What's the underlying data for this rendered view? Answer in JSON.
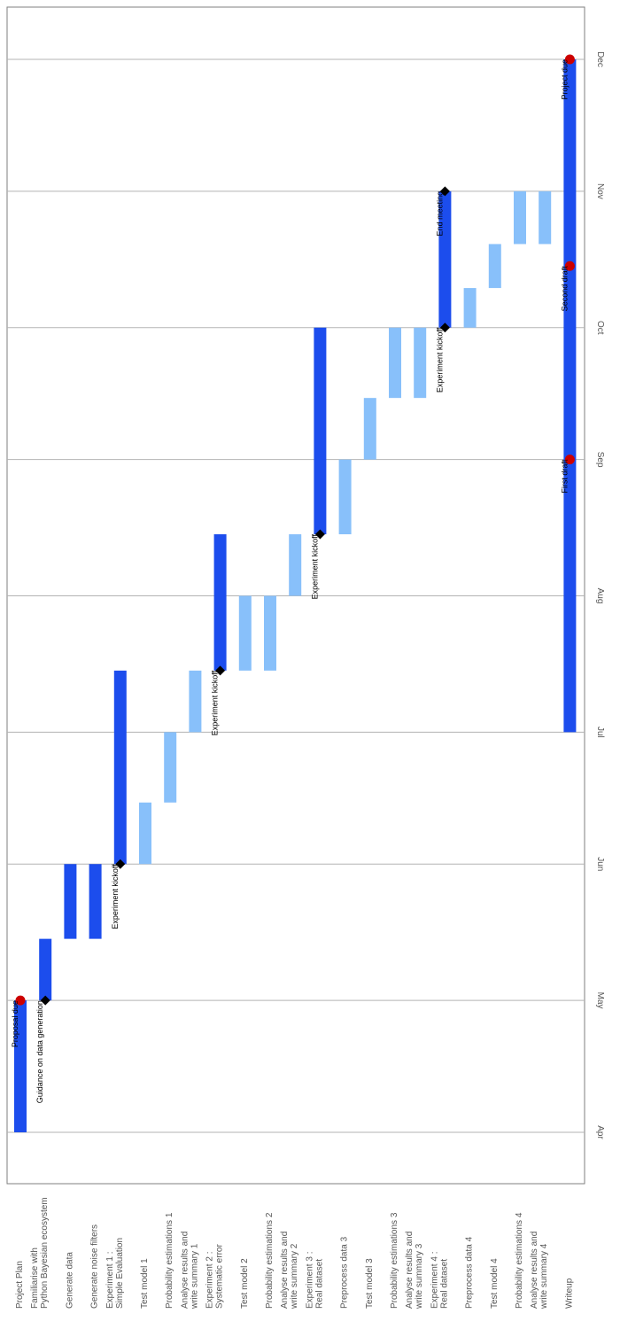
{
  "chart_data": {
    "type": "gantt",
    "orientation": "rotated-90",
    "time_axis": {
      "ticks": [
        "Apr",
        "May",
        "Jun",
        "Jul",
        "Aug",
        "Sep",
        "Oct",
        "Nov",
        "Dec"
      ],
      "range": [
        "2023-03-24",
        "2023-12-12"
      ],
      "grid": true
    },
    "colors": {
      "phase": "#1c4ded",
      "subtask": "#88c0fa",
      "milestone": "#000000",
      "deadline": "#cc0000",
      "grid": "#b3b3b3"
    },
    "tasks": [
      {
        "label": [
          "Project Plan"
        ],
        "start": "2023-04-01",
        "end": "2023-05-01",
        "kind": "phase"
      },
      {
        "label": [
          "Familiarise with",
          "Python Bayesian ecosystem"
        ],
        "start": "2023-05-01",
        "end": "2023-05-15",
        "kind": "phase"
      },
      {
        "label": [
          "Generate data"
        ],
        "start": "2023-05-15",
        "end": "2023-06-01",
        "kind": "phase"
      },
      {
        "label": [
          "Generate noise filters"
        ],
        "start": "2023-05-15",
        "end": "2023-06-01",
        "kind": "phase"
      },
      {
        "label": [
          "Experiment 1 :",
          "Simple Evaluation"
        ],
        "start": "2023-06-01",
        "end": "2023-07-15",
        "kind": "phase"
      },
      {
        "label": [
          "Test model 1"
        ],
        "start": "2023-06-01",
        "end": "2023-06-15",
        "kind": "subtask"
      },
      {
        "label": [
          "Probability estimations 1"
        ],
        "start": "2023-06-15",
        "end": "2023-07-01",
        "kind": "subtask"
      },
      {
        "label": [
          "Analyse results and",
          "write summary 1"
        ],
        "start": "2023-07-01",
        "end": "2023-07-15",
        "kind": "subtask"
      },
      {
        "label": [
          "Experiment 2 :",
          "Systematic error"
        ],
        "start": "2023-07-15",
        "end": "2023-08-15",
        "kind": "phase"
      },
      {
        "label": [
          "Test model 2"
        ],
        "start": "2023-07-15",
        "end": "2023-08-01",
        "kind": "subtask"
      },
      {
        "label": [
          "Probability estimations 2"
        ],
        "start": "2023-07-15",
        "end": "2023-08-01",
        "kind": "subtask"
      },
      {
        "label": [
          "Analyse results and",
          "write summary 2"
        ],
        "start": "2023-08-01",
        "end": "2023-08-15",
        "kind": "subtask"
      },
      {
        "label": [
          "Experiment 3 :",
          "Real dataset"
        ],
        "start": "2023-08-15",
        "end": "2023-10-01",
        "kind": "phase"
      },
      {
        "label": [
          "Preprocess data 3"
        ],
        "start": "2023-08-15",
        "end": "2023-09-01",
        "kind": "subtask"
      },
      {
        "label": [
          "Test model 3"
        ],
        "start": "2023-09-01",
        "end": "2023-09-15",
        "kind": "subtask"
      },
      {
        "label": [
          "Probability estimations 3"
        ],
        "start": "2023-09-15",
        "end": "2023-10-01",
        "kind": "subtask"
      },
      {
        "label": [
          "Analyse results and",
          "write summary 3"
        ],
        "start": "2023-09-15",
        "end": "2023-10-01",
        "kind": "subtask"
      },
      {
        "label": [
          "Experiment 4 :",
          "Real dataset"
        ],
        "start": "2023-10-01",
        "end": "2023-11-01",
        "kind": "phase"
      },
      {
        "label": [
          "Preprocess data 4"
        ],
        "start": "2023-10-01",
        "end": "2023-10-10",
        "kind": "subtask"
      },
      {
        "label": [
          "Test model 4"
        ],
        "start": "2023-10-10",
        "end": "2023-10-20",
        "kind": "subtask"
      },
      {
        "label": [
          "Probability estimations 4"
        ],
        "start": "2023-10-20",
        "end": "2023-11-01",
        "kind": "subtask"
      },
      {
        "label": [
          "Analyse results and",
          "write summary 4"
        ],
        "start": "2023-10-20",
        "end": "2023-11-01",
        "kind": "subtask"
      },
      {
        "label": [
          "Writeup"
        ],
        "start": "2023-07-01",
        "end": "2023-12-01",
        "kind": "phase"
      }
    ],
    "markers": [
      {
        "task": 0,
        "date": "2023-05-01",
        "shape": "circle",
        "text": "Proposal due"
      },
      {
        "task": 1,
        "date": "2023-05-01",
        "shape": "diamond",
        "text": "Guidance on data generation"
      },
      {
        "task": 4,
        "date": "2023-06-01",
        "shape": "diamond",
        "text": "Experiment kickoff"
      },
      {
        "task": 8,
        "date": "2023-07-15",
        "shape": "diamond",
        "text": "Experiment kickoff"
      },
      {
        "task": 12,
        "date": "2023-08-15",
        "shape": "diamond",
        "text": "Experiment kickoff"
      },
      {
        "task": 17,
        "date": "2023-10-01",
        "shape": "diamond",
        "text": "Experiment kickoff"
      },
      {
        "task": 17,
        "date": "2023-11-01",
        "shape": "diamond",
        "text": "End meeting"
      },
      {
        "task": 22,
        "date": "2023-09-01",
        "shape": "circle",
        "text": "First draft"
      },
      {
        "task": 22,
        "date": "2023-10-15",
        "shape": "circle",
        "text": "Second draft"
      },
      {
        "task": 22,
        "date": "2023-12-01",
        "shape": "circle",
        "text": "Project due"
      }
    ]
  }
}
